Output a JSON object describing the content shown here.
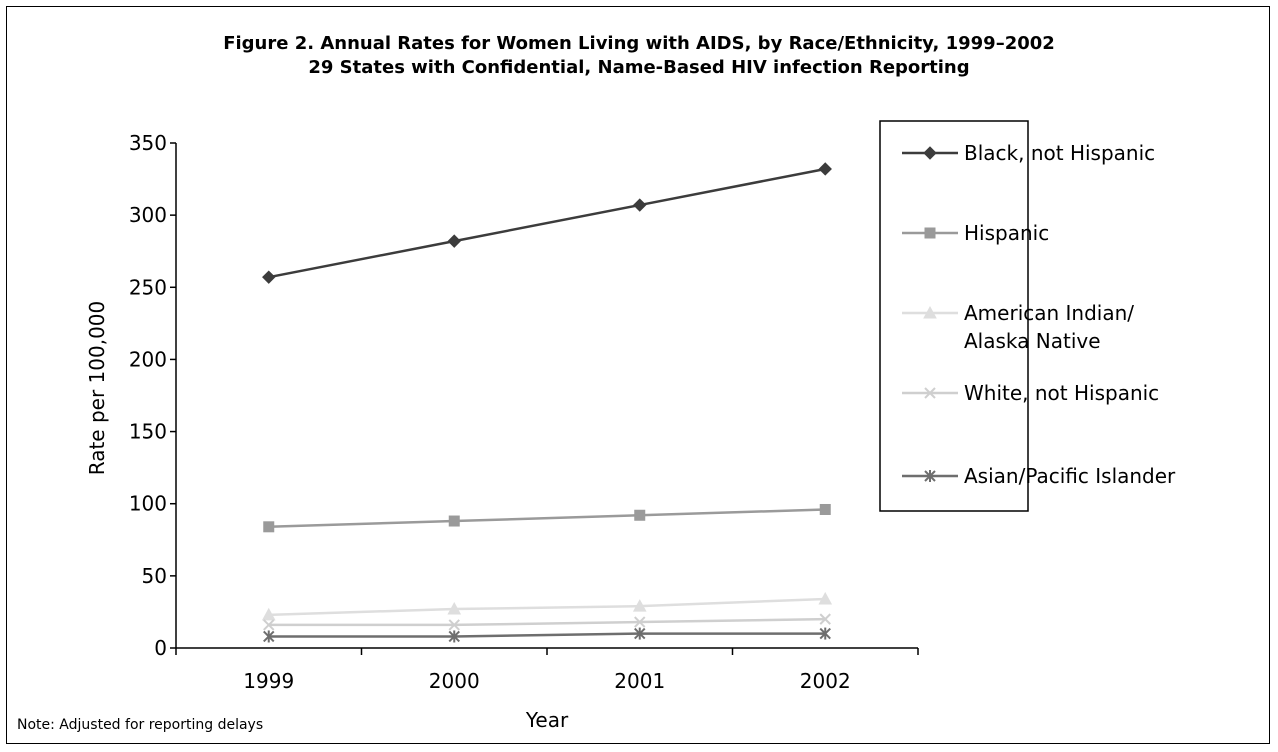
{
  "title": "Figure 2. Annual Rates for Women Living with AIDS, by Race/Ethnicity, 1999–2002",
  "subtitle": "29 States with Confidential, Name-Based HIV infection Reporting",
  "note": "Note: Adjusted for reporting delays",
  "chart_data": {
    "type": "line",
    "title": "Figure 2. Annual Rates for Women Living with AIDS, by Race/Ethnicity, 1999–2002",
    "subtitle": "29 States with Confidential, Name-Based HIV infection Reporting",
    "xlabel": "Year",
    "ylabel": "Rate per 100,000",
    "categories": [
      "1999",
      "2000",
      "2001",
      "2002"
    ],
    "ylim": [
      0,
      350
    ],
    "yticks": [
      "0",
      "50",
      "100",
      "150",
      "200",
      "250",
      "300",
      "350"
    ],
    "grid": false,
    "legend_position": "right",
    "series": [
      {
        "name": "Black, not Hispanic",
        "marker": "diamond",
        "color": "#3c3c3c",
        "values": [
          257,
          282,
          307,
          332
        ]
      },
      {
        "name": "Hispanic",
        "marker": "square",
        "color": "#9a9a9a",
        "values": [
          84,
          88,
          92,
          96
        ]
      },
      {
        "name": "American Indian/ Alaska Native",
        "label_lines": [
          "American Indian/",
          "Alaska Native"
        ],
        "marker": "triangle",
        "color": "#dedede",
        "values": [
          23,
          27,
          29,
          34
        ]
      },
      {
        "name": "White, not Hispanic",
        "marker": "x",
        "color": "#cfcfcf",
        "values": [
          16,
          16,
          18,
          20
        ]
      },
      {
        "name": "Asian/Pacific Islander",
        "marker": "asterisk",
        "color": "#6e6e6e",
        "values": [
          8,
          8,
          10,
          10
        ]
      }
    ]
  }
}
